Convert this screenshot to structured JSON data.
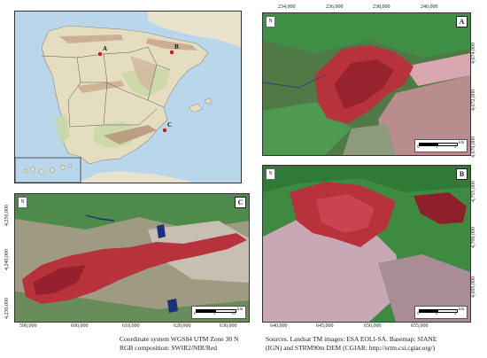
{
  "figure": {
    "caption_left": {
      "line1": "Coordinate system WGS84 UTM Zone 30 N",
      "line2": "RGB composition: SWIR2/NIR/Red"
    },
    "caption_right": {
      "line1": "Sources. Landsat TM images: ESA EOLI-SA. Basemap: SIANE",
      "line2": "(IGN) and STRM90m DEM (CGIAR: http://srtm.csi.cgiar.org/)"
    }
  },
  "overview_map": {
    "sites": [
      {
        "label": "A",
        "color": "#d81b1b"
      },
      {
        "label": "B",
        "color": "#d81b1b"
      },
      {
        "label": "C",
        "color": "#d81b1b"
      }
    ]
  },
  "panel_a": {
    "label": "A",
    "x_ticks": [
      "234,000",
      "236,000",
      "238,000",
      "240,000"
    ],
    "y_ticks": [
      "4,674,000",
      "4,672,000",
      "4,670,000"
    ],
    "scale": {
      "labels": [
        "0",
        "1",
        "2"
      ],
      "unit": "km"
    }
  },
  "panel_b": {
    "label": "B",
    "x_ticks": [
      "640,000",
      "645,000",
      "650,000",
      "655,000"
    ],
    "y_ticks": [
      "4,705,000",
      "4,700,000",
      "4,695,000"
    ],
    "scale": {
      "labels": [
        "0",
        "2",
        "4"
      ],
      "unit": "km"
    }
  },
  "panel_c": {
    "label": "C",
    "x_ticks": [
      "590,000",
      "600,000",
      "610,000",
      "620,000",
      "630,000"
    ],
    "y_ticks": [
      "4,250,000",
      "4,240,000",
      "4,230,000"
    ],
    "scale": {
      "labels": [
        "0",
        "5",
        "10"
      ],
      "unit": "km"
    }
  },
  "north_symbol": "N",
  "colors": {
    "sea": "#b9d6ea",
    "land": "#e6dfc4",
    "burn": "#b8323c",
    "vegetation": "#3f8f46"
  }
}
